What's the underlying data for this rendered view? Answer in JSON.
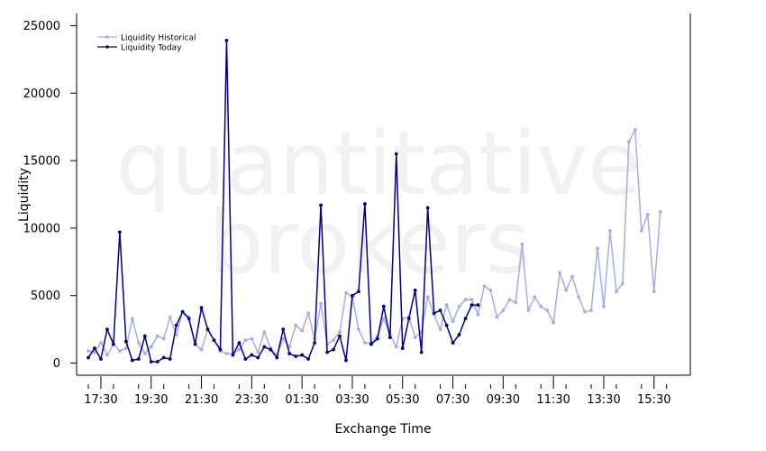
{
  "chart_data": {
    "type": "line",
    "watermark": [
      "quantitative",
      "brokers"
    ],
    "xlabel": "Exchange Time",
    "ylabel": "Liquidity",
    "ylim": [
      -900,
      25900
    ],
    "yticks": [
      0,
      5000,
      10000,
      15000,
      20000,
      25000
    ],
    "xticks": [
      "17:30",
      "19:30",
      "21:30",
      "23:30",
      "01:30",
      "03:30",
      "05:30",
      "07:30",
      "09:30",
      "11:30",
      "13:30",
      "15:30"
    ],
    "x_start": "17:00",
    "x_end": "16:15",
    "x_step_minutes": 15,
    "legend_position": "top-left",
    "series": [
      {
        "name": "Liquidity Historical",
        "color": "#aaaaee",
        "values": [
          900,
          800,
          1500,
          600,
          1400,
          900,
          1100,
          3300,
          1500,
          700,
          1200,
          2000,
          1800,
          3400,
          2100,
          3800,
          3400,
          1400,
          1000,
          2500,
          1700,
          900,
          700,
          700,
          1000,
          1700,
          1800,
          800,
          2300,
          1100,
          600,
          1800,
          1200,
          2800,
          2400,
          3700,
          1800,
          4400,
          1400,
          1700,
          2300,
          5200,
          4900,
          2500,
          1500,
          1500,
          2000,
          3300,
          2100,
          1200,
          3300,
          3400,
          1900,
          2300,
          4900,
          3600,
          2500,
          4300,
          3100,
          4200,
          4700,
          4700,
          3600,
          5700,
          5400,
          3400,
          3900,
          4700,
          4500,
          8800,
          3900,
          4900,
          4200,
          3900,
          3000,
          6700,
          5400,
          6400,
          4900,
          3800,
          3900,
          8500,
          4200,
          9800,
          5300,
          5900,
          16400,
          17300,
          9800,
          11000,
          5300,
          11200
        ]
      },
      {
        "name": "Liquidity Today",
        "color": "#00008b",
        "values": [
          400,
          1100,
          300,
          2500,
          1400,
          9700,
          1600,
          200,
          300,
          2000,
          100,
          100,
          400,
          300,
          2800,
          3800,
          3300,
          1400,
          4100,
          2500,
          1700,
          1000,
          23900,
          600,
          1500,
          300,
          600,
          400,
          1200,
          1000,
          400,
          2500,
          700,
          500,
          600,
          300,
          1500,
          11700,
          800,
          1000,
          2000,
          200,
          5000,
          5300,
          11800,
          1400,
          1800,
          4200,
          1900,
          15500,
          1100,
          3300,
          5400,
          800,
          11500,
          3700,
          3900,
          2800,
          1500,
          2100,
          3300,
          4300,
          4300
        ]
      }
    ]
  }
}
